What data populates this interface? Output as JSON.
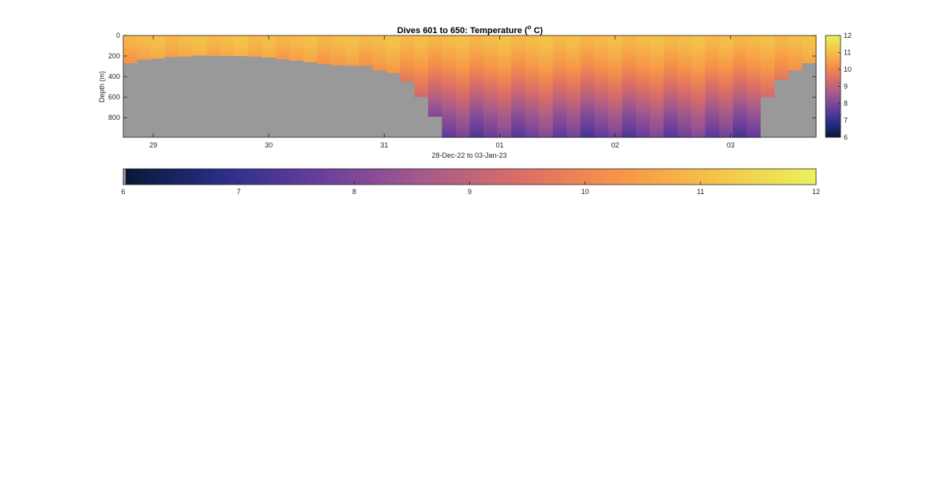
{
  "chart_data": {
    "type": "heatmap",
    "title": "Dives 601 to 650: Temperature (",
    "title_super": "o",
    "title_tail": " C)",
    "ylabel": "Depth (m)",
    "xlabel": "28-Dec-22 to 03-Jan-23",
    "ylim": [
      0,
      990
    ],
    "y_reversed": true,
    "y_ticks": [
      0,
      200,
      400,
      600,
      800
    ],
    "x_tick_labels": [
      "29",
      "30",
      "31",
      "01",
      "02",
      "03"
    ],
    "x_tick_days": [
      1,
      2,
      3,
      4,
      5,
      6
    ],
    "xlim_days": [
      0.74,
      6.74
    ],
    "colorbar": {
      "vmin": 6,
      "vmax": 12,
      "ticks": [
        6,
        7,
        8,
        9,
        10,
        11,
        12
      ],
      "colors": [
        "#041a33",
        "#2c2d8a",
        "#6a3f9c",
        "#a45a8c",
        "#db6e66",
        "#f79448",
        "#f4c549",
        "#eaf15c"
      ]
    },
    "no_data_color": "#999999",
    "dive_max_depth_m": [
      270,
      235,
      225,
      210,
      205,
      195,
      198,
      200,
      200,
      205,
      215,
      230,
      245,
      260,
      280,
      290,
      295,
      295,
      340,
      365,
      450,
      600,
      790,
      990,
      990,
      990,
      990,
      990,
      990,
      990,
      990,
      990,
      990,
      990,
      990,
      990,
      990,
      990,
      990,
      990,
      990,
      990,
      990,
      990,
      990,
      990,
      600,
      430,
      340,
      270
    ],
    "profile_depths_m": [
      0,
      100,
      200,
      300,
      400,
      500,
      600,
      700,
      800,
      900,
      990
    ],
    "profile_temperature_c": [
      11.0,
      10.9,
      10.6,
      10.3,
      9.9,
      9.5,
      9.1,
      8.7,
      8.3,
      8.0,
      7.6
    ]
  }
}
